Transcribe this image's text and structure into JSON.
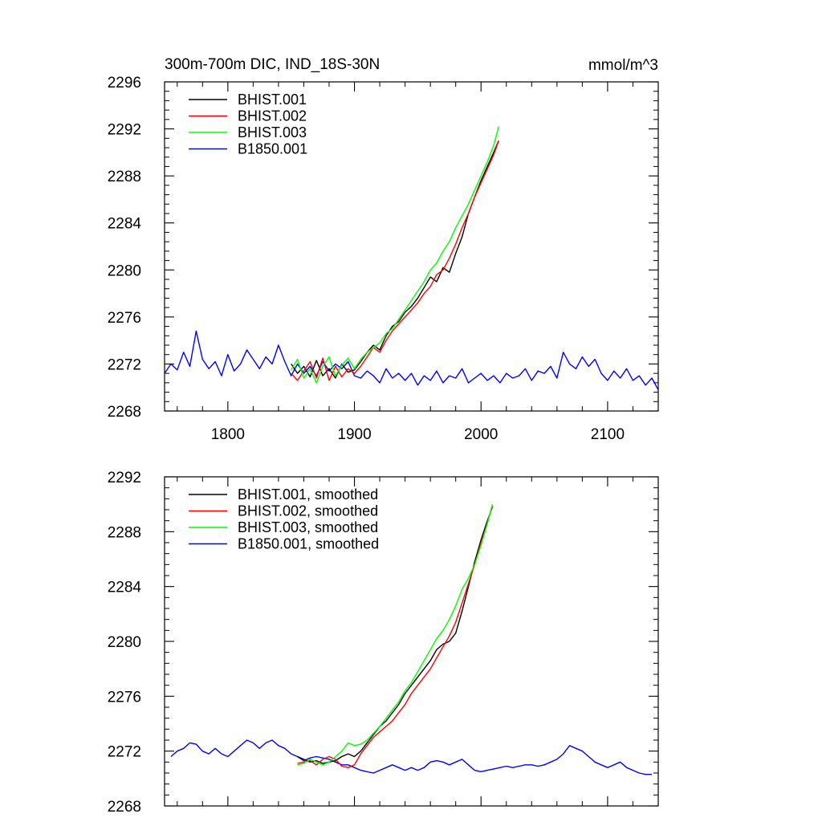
{
  "chart_data": [
    {
      "type": "line",
      "title": "300m-700m DIC, IND_18S-30N",
      "units": "mmol/m^3",
      "xlim": [
        1750,
        2140
      ],
      "ylim": [
        2268,
        2296
      ],
      "xticks": [
        1800,
        1900,
        2000,
        2100
      ],
      "yticks": [
        2268,
        2272,
        2276,
        2280,
        2284,
        2288,
        2292,
        2296
      ],
      "x_tick_labels_shown": true,
      "grid": false,
      "legend_position": "top-left",
      "series": [
        {
          "name": "BHIST.001",
          "color": "#000000",
          "x": [
            1850,
            1855,
            1860,
            1865,
            1870,
            1875,
            1880,
            1885,
            1890,
            1895,
            1900,
            1905,
            1910,
            1915,
            1920,
            1925,
            1930,
            1935,
            1940,
            1945,
            1950,
            1955,
            1960,
            1965,
            1970,
            1975,
            1980,
            1985,
            1990,
            1995,
            2000,
            2005,
            2010,
            2014
          ],
          "y": [
            2272.0,
            2271.2,
            2271.8,
            2270.9,
            2272.3,
            2271.0,
            2271.6,
            2270.8,
            2272.0,
            2271.3,
            2271.5,
            2272.2,
            2273.0,
            2273.6,
            2273.2,
            2274.4,
            2275.2,
            2275.6,
            2276.4,
            2276.9,
            2277.6,
            2278.5,
            2279.4,
            2279.0,
            2280.2,
            2279.8,
            2281.4,
            2282.8,
            2284.8,
            2286.2,
            2287.6,
            2288.8,
            2290.0,
            2291.0
          ]
        },
        {
          "name": "BHIST.002",
          "color": "#ff0000",
          "x": [
            1850,
            1855,
            1860,
            1865,
            1870,
            1875,
            1880,
            1885,
            1890,
            1895,
            1900,
            1905,
            1910,
            1915,
            1920,
            1925,
            1930,
            1935,
            1940,
            1945,
            1950,
            1955,
            1960,
            1965,
            1970,
            1975,
            1980,
            1985,
            1990,
            1995,
            2000,
            2005,
            2010,
            2014
          ],
          "y": [
            2271.2,
            2270.6,
            2271.4,
            2272.2,
            2270.8,
            2272.5,
            2270.6,
            2271.8,
            2270.9,
            2271.6,
            2271.2,
            2271.8,
            2272.6,
            2273.4,
            2273.0,
            2274.0,
            2274.8,
            2275.4,
            2276.0,
            2276.6,
            2277.2,
            2278.0,
            2278.6,
            2279.6,
            2280.0,
            2281.0,
            2282.2,
            2283.6,
            2284.8,
            2286.2,
            2287.4,
            2288.6,
            2289.8,
            2291.0
          ]
        },
        {
          "name": "BHIST.003",
          "color": "#00ff00",
          "x": [
            1850,
            1855,
            1860,
            1865,
            1870,
            1875,
            1880,
            1885,
            1890,
            1895,
            1900,
            1905,
            1910,
            1915,
            1920,
            1925,
            1930,
            1935,
            1940,
            1945,
            1950,
            1955,
            1960,
            1965,
            1970,
            1975,
            1980,
            1985,
            1990,
            1995,
            2000,
            2005,
            2010,
            2014
          ],
          "y": [
            2271.5,
            2272.4,
            2270.8,
            2271.6,
            2270.4,
            2271.8,
            2272.6,
            2271.0,
            2271.9,
            2272.5,
            2271.6,
            2272.4,
            2273.0,
            2273.4,
            2273.8,
            2274.6,
            2275.0,
            2275.8,
            2276.6,
            2277.4,
            2278.2,
            2279.0,
            2280.0,
            2280.6,
            2281.6,
            2282.4,
            2283.6,
            2284.6,
            2285.6,
            2286.8,
            2288.0,
            2289.2,
            2290.6,
            2292.2
          ]
        },
        {
          "name": "B1850.001",
          "color": "#0000ff",
          "x": [
            1750,
            1755,
            1760,
            1765,
            1770,
            1775,
            1780,
            1785,
            1790,
            1795,
            1800,
            1805,
            1810,
            1815,
            1820,
            1825,
            1830,
            1835,
            1840,
            1845,
            1850,
            1855,
            1860,
            1865,
            1870,
            1875,
            1880,
            1885,
            1890,
            1895,
            1900,
            1905,
            1910,
            1915,
            1920,
            1925,
            1930,
            1935,
            1940,
            1945,
            1950,
            1955,
            1960,
            1965,
            1970,
            1975,
            1980,
            1985,
            1990,
            1995,
            2000,
            2005,
            2010,
            2015,
            2020,
            2025,
            2030,
            2035,
            2040,
            2045,
            2050,
            2055,
            2060,
            2065,
            2070,
            2075,
            2080,
            2085,
            2090,
            2095,
            2100,
            2105,
            2110,
            2115,
            2120,
            2125,
            2130,
            2135,
            2140
          ],
          "y": [
            2271.2,
            2272.0,
            2271.5,
            2273.0,
            2271.8,
            2274.8,
            2272.4,
            2271.6,
            2272.2,
            2271.0,
            2272.8,
            2271.4,
            2272.0,
            2273.2,
            2272.4,
            2271.6,
            2272.6,
            2272.0,
            2273.6,
            2272.2,
            2271.0,
            2272.0,
            2271.2,
            2271.8,
            2271.0,
            2272.2,
            2271.4,
            2272.0,
            2271.6,
            2272.2,
            2271.0,
            2270.8,
            2271.4,
            2271.0,
            2270.4,
            2271.6,
            2270.8,
            2271.2,
            2270.6,
            2271.2,
            2270.2,
            2271.0,
            2270.6,
            2271.4,
            2270.4,
            2271.0,
            2270.8,
            2271.6,
            2270.4,
            2270.8,
            2271.2,
            2270.6,
            2271.0,
            2270.4,
            2271.2,
            2270.8,
            2271.0,
            2271.6,
            2270.6,
            2271.4,
            2271.2,
            2271.8,
            2270.8,
            2273.0,
            2272.0,
            2271.6,
            2272.6,
            2271.8,
            2272.4,
            2271.2,
            2270.6,
            2271.4,
            2270.8,
            2271.6,
            2270.6,
            2271.0,
            2270.2,
            2270.8,
            2269.8
          ]
        }
      ]
    },
    {
      "type": "line",
      "title": "",
      "xlim": [
        1750,
        2140
      ],
      "ylim": [
        2268,
        2292
      ],
      "xticks": [
        1800,
        1900,
        2000,
        2100
      ],
      "yticks": [
        2268,
        2272,
        2276,
        2280,
        2284,
        2288,
        2292
      ],
      "x_tick_labels_shown": false,
      "grid": false,
      "legend_position": "top-left",
      "series": [
        {
          "name": "BHIST.001, smoothed",
          "color": "#000000",
          "x": [
            1855,
            1860,
            1865,
            1870,
            1875,
            1880,
            1885,
            1890,
            1895,
            1900,
            1905,
            1910,
            1915,
            1920,
            1925,
            1930,
            1935,
            1940,
            1945,
            1950,
            1955,
            1960,
            1965,
            1970,
            1975,
            1980,
            1985,
            1990,
            1995,
            2000,
            2005,
            2009
          ],
          "y": [
            2271.6,
            2271.4,
            2271.2,
            2271.3,
            2271.1,
            2271.2,
            2271.3,
            2271.6,
            2271.8,
            2271.6,
            2272.0,
            2272.6,
            2273.2,
            2273.8,
            2274.2,
            2274.8,
            2275.4,
            2276.2,
            2276.8,
            2277.4,
            2278.0,
            2278.6,
            2279.4,
            2279.8,
            2280.0,
            2280.6,
            2282.2,
            2284.0,
            2285.8,
            2287.4,
            2288.8,
            2289.8
          ]
        },
        {
          "name": "BHIST.002, smoothed",
          "color": "#ff0000",
          "x": [
            1855,
            1860,
            1865,
            1870,
            1875,
            1880,
            1885,
            1890,
            1895,
            1900,
            1905,
            1910,
            1915,
            1920,
            1925,
            1930,
            1935,
            1940,
            1945,
            1950,
            1955,
            1960,
            1965,
            1970,
            1975,
            1980,
            1985,
            1990,
            1995,
            2000,
            2005,
            2009
          ],
          "y": [
            2271.1,
            2271.2,
            2271.3,
            2271.0,
            2271.4,
            2271.6,
            2271.4,
            2270.9,
            2270.8,
            2271.0,
            2271.8,
            2272.4,
            2273.0,
            2273.4,
            2273.8,
            2274.2,
            2274.8,
            2275.4,
            2276.2,
            2276.8,
            2277.4,
            2278.0,
            2278.8,
            2279.6,
            2280.4,
            2281.4,
            2282.8,
            2284.2,
            2285.6,
            2287.2,
            2288.6,
            2289.9
          ]
        },
        {
          "name": "BHIST.003, smoothed",
          "color": "#00ff00",
          "x": [
            1855,
            1860,
            1865,
            1870,
            1875,
            1880,
            1885,
            1890,
            1895,
            1900,
            1905,
            1910,
            1915,
            1920,
            1925,
            1930,
            1935,
            1940,
            1945,
            1950,
            1955,
            1960,
            1965,
            1970,
            1975,
            1980,
            1985,
            1990,
            1995,
            2000,
            2005,
            2009
          ],
          "y": [
            2271.0,
            2271.1,
            2271.4,
            2271.2,
            2271.0,
            2271.2,
            2271.6,
            2272.0,
            2272.6,
            2272.4,
            2272.5,
            2272.8,
            2273.3,
            2273.8,
            2274.4,
            2275.0,
            2275.6,
            2276.4,
            2277.0,
            2277.8,
            2278.6,
            2279.4,
            2280.2,
            2280.8,
            2281.6,
            2282.6,
            2283.8,
            2284.6,
            2285.6,
            2287.0,
            2288.6,
            2290.0
          ]
        },
        {
          "name": "B1850.001, smoothed",
          "color": "#0000ff",
          "x": [
            1755,
            1760,
            1765,
            1770,
            1775,
            1780,
            1785,
            1790,
            1795,
            1800,
            1805,
            1810,
            1815,
            1820,
            1825,
            1830,
            1835,
            1840,
            1845,
            1850,
            1855,
            1860,
            1865,
            1870,
            1875,
            1880,
            1885,
            1890,
            1895,
            1900,
            1905,
            1910,
            1915,
            1920,
            1925,
            1930,
            1935,
            1940,
            1945,
            1950,
            1955,
            1960,
            1965,
            1970,
            1975,
            1980,
            1985,
            1990,
            1995,
            2000,
            2005,
            2010,
            2015,
            2020,
            2025,
            2030,
            2035,
            2040,
            2045,
            2050,
            2055,
            2060,
            2065,
            2070,
            2075,
            2080,
            2085,
            2090,
            2095,
            2100,
            2105,
            2110,
            2115,
            2120,
            2125,
            2130,
            2135
          ],
          "y": [
            2271.6,
            2272.0,
            2272.2,
            2272.6,
            2272.5,
            2272.0,
            2271.8,
            2272.2,
            2271.8,
            2271.6,
            2272.0,
            2272.4,
            2272.8,
            2272.6,
            2272.2,
            2272.6,
            2272.8,
            2272.4,
            2272.2,
            2271.8,
            2271.6,
            2271.3,
            2271.5,
            2271.6,
            2271.5,
            2271.4,
            2271.2,
            2271.0,
            2271.0,
            2270.8,
            2270.6,
            2270.5,
            2270.4,
            2270.6,
            2270.8,
            2271.0,
            2270.8,
            2270.6,
            2270.8,
            2270.6,
            2270.8,
            2271.2,
            2271.3,
            2271.2,
            2271.0,
            2271.2,
            2271.4,
            2271.0,
            2270.6,
            2270.5,
            2270.6,
            2270.7,
            2270.8,
            2270.9,
            2270.8,
            2270.9,
            2271.0,
            2271.0,
            2270.9,
            2271.0,
            2271.2,
            2271.4,
            2271.8,
            2272.4,
            2272.2,
            2272.0,
            2271.6,
            2271.2,
            2271.0,
            2270.8,
            2271.0,
            2271.2,
            2270.8,
            2270.6,
            2270.4,
            2270.3,
            2270.3
          ]
        }
      ]
    }
  ]
}
